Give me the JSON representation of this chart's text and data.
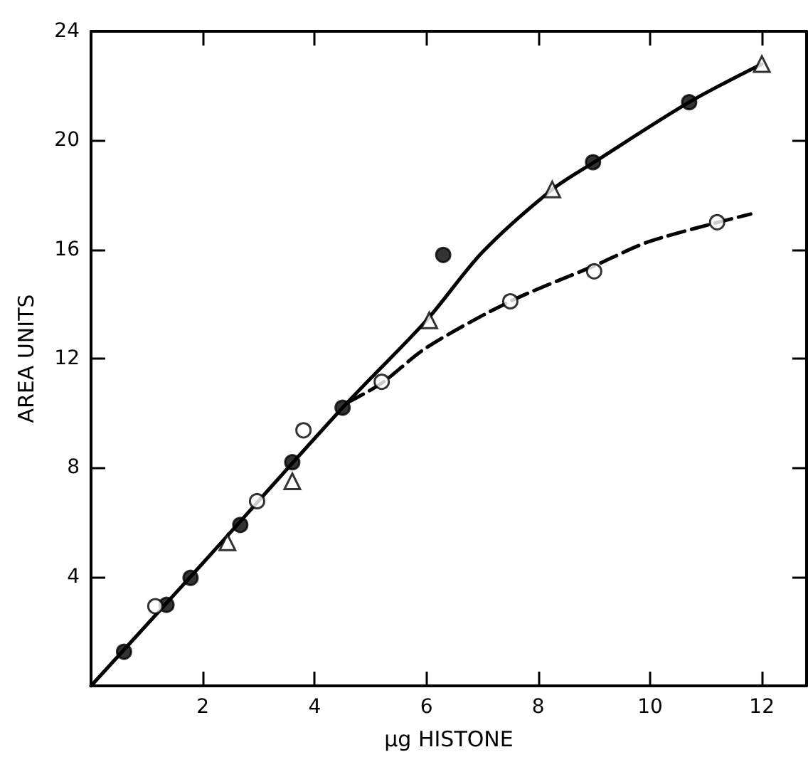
{
  "chart_data": {
    "type": "scatter",
    "xlabel": "μg HISTONE",
    "ylabel": "AREA UNITS",
    "xlim": [
      0,
      12.8
    ],
    "ylim": [
      0,
      24
    ],
    "xticks": [
      2,
      4,
      6,
      8,
      10,
      12
    ],
    "yticks": [
      4,
      8,
      12,
      16,
      20,
      24
    ],
    "grid": false,
    "series": [
      {
        "type": "line",
        "color": "#000000",
        "marker": "none",
        "line_style": "solid",
        "x": [
          0,
          2,
          4.5,
          6,
          7,
          8.25,
          9,
          10.7,
          12
        ],
        "values": [
          0,
          4.5,
          10.2,
          13.4,
          15.9,
          18.2,
          19.2,
          21.4,
          22.8
        ]
      },
      {
        "type": "line",
        "color": "#000000",
        "marker": "none",
        "line_style": "dashed",
        "x": [
          4.6,
          5.2,
          6,
          7.5,
          9,
          10,
          11.8
        ],
        "values": [
          10.4,
          11.1,
          12.4,
          14.1,
          15.4,
          16.3,
          17.3
        ]
      },
      {
        "color": "#000000",
        "marker": "circle",
        "x": [
          0.59,
          1.35,
          1.78,
          2.67,
          3.6,
          4.5,
          6.3,
          8.98,
          10.7
        ],
        "values": [
          1.25,
          2.97,
          3.96,
          5.9,
          8.2,
          10.2,
          15.8,
          19.2,
          21.4
        ]
      },
      {
        "color": "#ffffff",
        "marker": "circle",
        "x": [
          1.15,
          2.97,
          3.8,
          5.2,
          7.5,
          9.0,
          11.2
        ],
        "values": [
          2.92,
          6.77,
          9.37,
          11.15,
          14.1,
          15.2,
          17.0
        ]
      },
      {
        "color": "#ffffff",
        "marker": "triangle",
        "x": [
          2.44,
          3.6,
          6.05,
          8.25,
          12.0
        ],
        "values": [
          5.26,
          7.5,
          13.4,
          18.2,
          22.8
        ]
      }
    ]
  }
}
